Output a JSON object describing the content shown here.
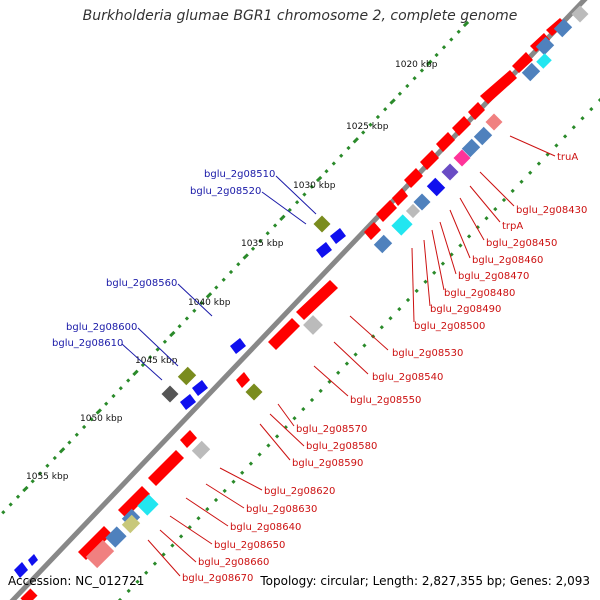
{
  "title": "Burkholderia glumae BGR1 chromosome 2, complete genome",
  "footer": {
    "accession": "Accession: NC_012721",
    "summary": "Topology: circular; Length: 2,827,355 bp; Genes: 2,093"
  },
  "scale_labels": [
    "1020 kbp",
    "1025 kbp",
    "1030 kbp",
    "1035 kbp",
    "1040 kbp",
    "1045 kbp",
    "1050 kbp",
    "1055 kbp"
  ],
  "gene_labels_forward": [
    "bglu_2g08510",
    "bglu_2g08520",
    "bglu_2g08560",
    "bglu_2g08600",
    "bglu_2g08610"
  ],
  "gene_labels_reverse": [
    "truA",
    "bglu_2g08430",
    "trpA",
    "bglu_2g08450",
    "bglu_2g08460",
    "bglu_2g08470",
    "bglu_2g08480",
    "bglu_2g08490",
    "bglu_2g08500",
    "bglu_2g08530",
    "bglu_2g08540",
    "bglu_2g08550",
    "bglu_2g08570",
    "bglu_2g08580",
    "bglu_2g08590",
    "bglu_2g08620",
    "bglu_2g08630",
    "bglu_2g08640",
    "bglu_2g08650",
    "bglu_2g08660",
    "bglu_2g08670"
  ],
  "colors": {
    "backbone": "#888888",
    "cds": "#ff0000",
    "trna_like": "#4f81bd",
    "cyan_feature": "#22e6f0",
    "olive_feature": "#7a8c1e",
    "gray_feature": "#bbbbbb",
    "pink_feature": "#f08080",
    "blue_feature": "#1010ee",
    "magenta_feature": "#ff3399",
    "khaki_feature": "#c8c87a",
    "tick": "#2a8a2a",
    "label_blue": "#1a1aa8",
    "label_red": "#cc1111"
  }
}
